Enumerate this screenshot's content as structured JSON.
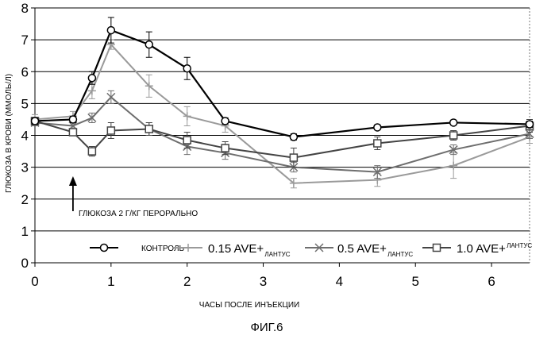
{
  "figure_caption": "ФИГ.6",
  "chart_data": {
    "type": "line",
    "title": "",
    "xlabel": "ЧАСЫ ПОСЛЕ ИНЪЕКЦИИ",
    "ylabel": "ГЛЮКОЗА В КРОВИ (ММОЛЬ/Л)",
    "xlim": [
      0,
      6.5
    ],
    "ylim": [
      0,
      8
    ],
    "x_ticks": [
      "0",
      "1",
      "2",
      "3",
      "4",
      "5",
      "6"
    ],
    "y_ticks": [
      "0",
      "1",
      "2",
      "3",
      "4",
      "5",
      "6",
      "7",
      "8"
    ],
    "grid": "horizontal",
    "legend_position": "bottom",
    "annotation": {
      "text": "ГЛЮКОЗА 2 Г/КГ ПЕРОРАЛЬНО",
      "x": 0.5,
      "y": 2.4
    },
    "series": [
      {
        "name": "КОНТРОЛЬ",
        "color": "#000000",
        "marker": "circle",
        "x": [
          0,
          0.5,
          0.75,
          1,
          1.5,
          2,
          2.5,
          3.4,
          4.5,
          5.5,
          6.5
        ],
        "y": [
          4.45,
          4.5,
          5.8,
          7.3,
          6.85,
          6.1,
          4.45,
          3.95,
          4.25,
          4.4,
          4.35
        ],
        "err": [
          0.1,
          0.1,
          0.2,
          0.4,
          0.4,
          0.35,
          0.1,
          0.1,
          0.08,
          0.08,
          0.1
        ]
      },
      {
        "name": "0.15 AVE+",
        "name_sub": "ЛАНТУС",
        "color": "#9a9a9a",
        "marker": "plus",
        "x": [
          0,
          0.5,
          0.75,
          1,
          1.5,
          2,
          2.5,
          3.4,
          4.5,
          5.5,
          6.5
        ],
        "y": [
          4.5,
          4.6,
          5.4,
          6.85,
          5.55,
          4.6,
          4.3,
          2.5,
          2.6,
          3.05,
          3.95
        ],
        "err": [
          0.15,
          0.15,
          0.25,
          0.15,
          0.35,
          0.3,
          0.2,
          0.15,
          0.2,
          0.4,
          0.2
        ]
      },
      {
        "name": "0.5 AVE+",
        "name_sub": "ЛАНТУС",
        "color": "#6e6e6e",
        "marker": "x",
        "x": [
          0,
          0.5,
          0.75,
          1,
          1.5,
          2,
          2.5,
          3.4,
          4.5,
          5.5,
          6.5
        ],
        "y": [
          4.4,
          4.3,
          4.55,
          5.2,
          4.2,
          3.65,
          3.45,
          3.0,
          2.85,
          3.55,
          4.05
        ],
        "err": [
          0.1,
          0.1,
          0.15,
          0.2,
          0.2,
          0.25,
          0.2,
          0.15,
          0.2,
          0.15,
          0.15
        ]
      },
      {
        "name": "1.0 AVE+",
        "name_sub": "ЛАНТУС",
        "color": "#444444",
        "marker": "square",
        "x": [
          0,
          0.5,
          0.75,
          1,
          1.5,
          2,
          2.5,
          3.4,
          4.5,
          5.5,
          6.5
        ],
        "y": [
          4.45,
          4.1,
          3.5,
          4.15,
          4.2,
          3.85,
          3.6,
          3.3,
          3.75,
          4.0,
          4.3
        ],
        "err": [
          0.1,
          0.1,
          0.15,
          0.25,
          0.2,
          0.25,
          0.2,
          0.3,
          0.2,
          0.15,
          0.2
        ]
      }
    ]
  }
}
